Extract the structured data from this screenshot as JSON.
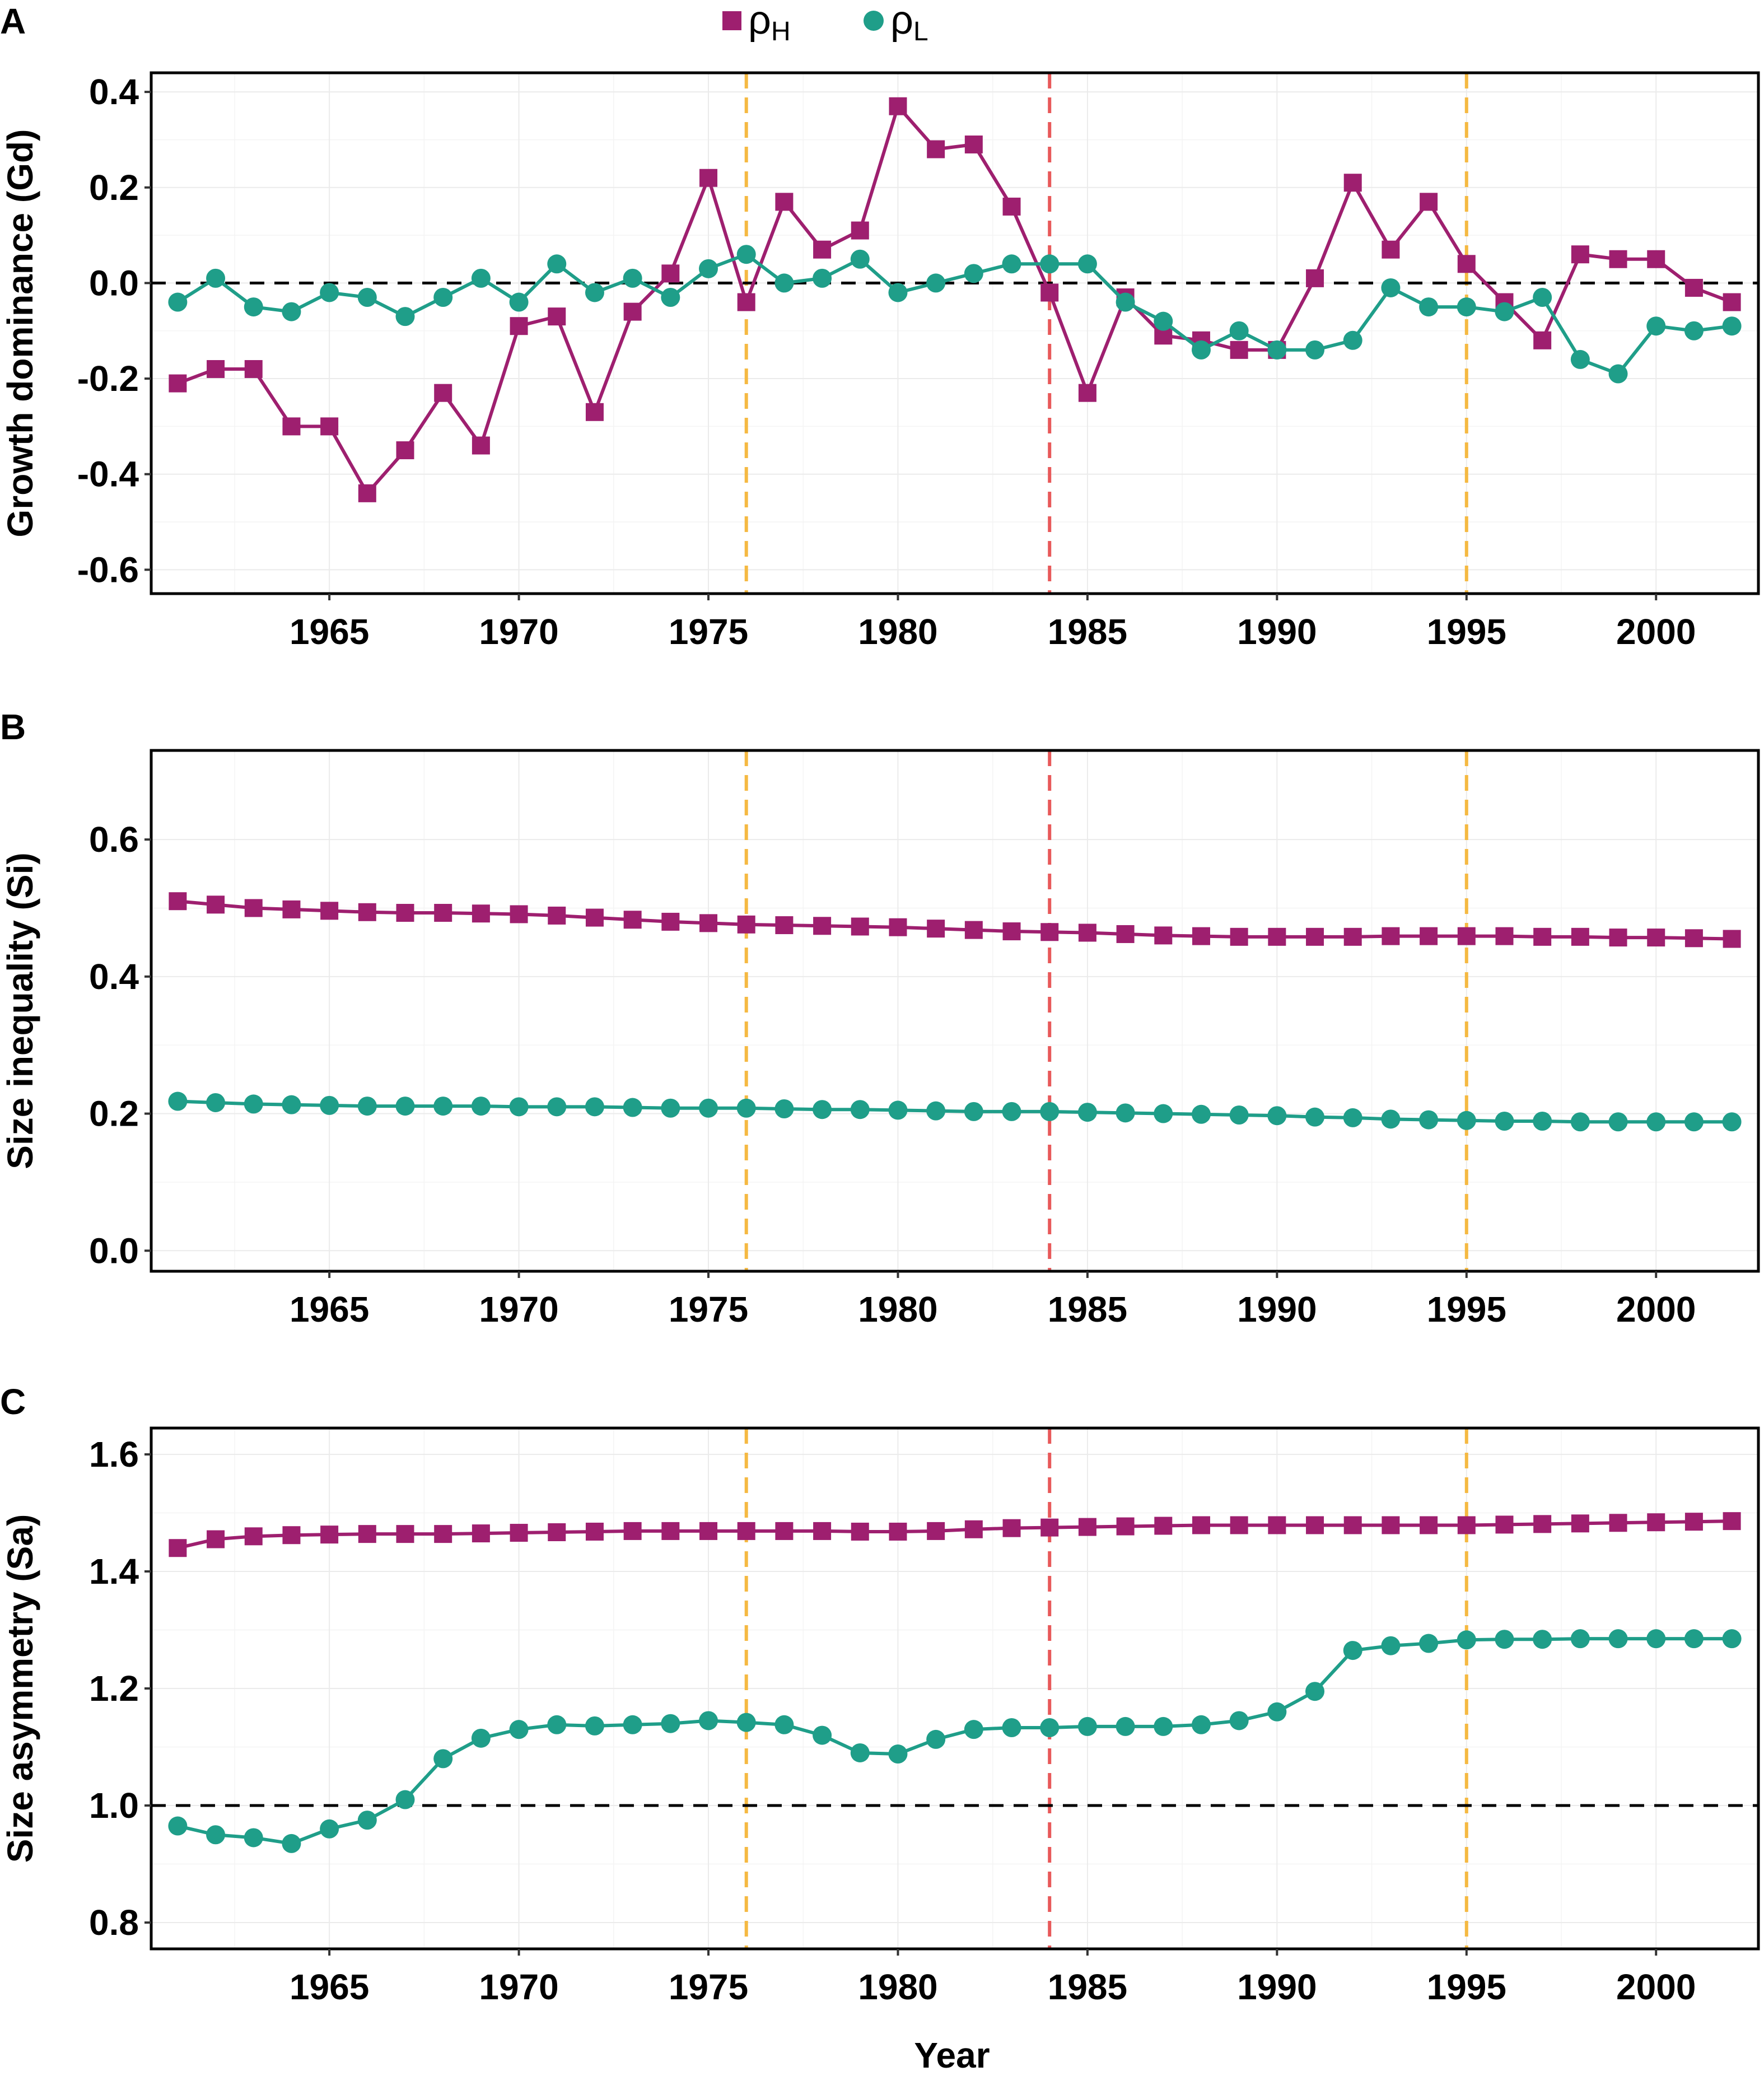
{
  "legend": {
    "series_h": {
      "symbol": "ρ",
      "sub": "H",
      "color": "#9e1f6f",
      "marker": "square"
    },
    "series_l": {
      "symbol": "ρ",
      "sub": "L",
      "color": "#1f9e89",
      "marker": "circle"
    }
  },
  "xlabel": "Year",
  "vlines": [
    {
      "x": 1976,
      "color": "#f5b942"
    },
    {
      "x": 1984,
      "color": "#e8595a"
    },
    {
      "x": 1995,
      "color": "#f5b942"
    }
  ],
  "chart_data": [
    {
      "type": "line",
      "panel": "A",
      "ylabel": "Growth dominance (Gd)",
      "xlim": [
        1960.3,
        2002.7
      ],
      "ylim": [
        -0.65,
        0.44
      ],
      "xticks": [
        1965,
        1970,
        1975,
        1980,
        1985,
        1990,
        1995,
        2000
      ],
      "xtick_labels": [
        "1965",
        "1970",
        "1975",
        "1980",
        "1985",
        "1990",
        "1995",
        "2000"
      ],
      "yticks": [
        -0.6,
        -0.4,
        -0.2,
        0.0,
        0.2,
        0.4
      ],
      "ytick_labels": [
        "-0.6",
        "-0.4",
        "-0.2",
        "0.0",
        "0.2",
        "0.4"
      ],
      "hline": 0.0,
      "x": [
        1961,
        1962,
        1963,
        1964,
        1965,
        1966,
        1967,
        1968,
        1969,
        1970,
        1971,
        1972,
        1973,
        1974,
        1975,
        1976,
        1977,
        1978,
        1979,
        1980,
        1981,
        1982,
        1983,
        1984,
        1985,
        1986,
        1987,
        1988,
        1989,
        1990,
        1991,
        1992,
        1993,
        1994,
        1995,
        1996,
        1997,
        1998,
        1999,
        2000,
        2001,
        2002
      ],
      "series": [
        {
          "name": "ρH",
          "values": [
            -0.21,
            -0.18,
            -0.18,
            -0.3,
            -0.3,
            -0.44,
            -0.35,
            -0.23,
            -0.34,
            -0.09,
            -0.07,
            -0.27,
            -0.06,
            0.02,
            0.22,
            -0.04,
            0.17,
            0.07,
            0.11,
            0.37,
            0.28,
            0.29,
            0.16,
            -0.02,
            -0.23,
            -0.03,
            -0.11,
            -0.12,
            -0.14,
            -0.14,
            0.01,
            0.21,
            0.07,
            0.17,
            0.04,
            -0.04,
            -0.12,
            0.06,
            0.05,
            0.05,
            -0.01,
            -0.04
          ]
        },
        {
          "name": "ρL",
          "values": [
            -0.04,
            0.01,
            -0.05,
            -0.06,
            -0.02,
            -0.03,
            -0.07,
            -0.03,
            0.01,
            -0.04,
            0.04,
            -0.02,
            0.01,
            -0.03,
            0.03,
            0.06,
            0.0,
            0.01,
            0.05,
            -0.02,
            0.0,
            0.02,
            0.04,
            0.04,
            0.04,
            -0.04,
            -0.08,
            -0.14,
            -0.1,
            -0.14,
            -0.14,
            -0.12,
            -0.01,
            -0.05,
            -0.05,
            -0.06,
            -0.03,
            -0.16,
            -0.19,
            -0.09,
            -0.1,
            -0.09
          ]
        }
      ]
    },
    {
      "type": "line",
      "panel": "B",
      "ylabel": "Size inequality (Si)",
      "xlim": [
        1960.3,
        2002.7
      ],
      "ylim": [
        -0.03,
        0.73
      ],
      "xticks": [
        1965,
        1970,
        1975,
        1980,
        1985,
        1990,
        1995,
        2000
      ],
      "xtick_labels": [
        "1965",
        "1970",
        "1975",
        "1980",
        "1985",
        "1990",
        "1995",
        "2000"
      ],
      "yticks": [
        0.0,
        0.2,
        0.4,
        0.6
      ],
      "ytick_labels": [
        "0.0",
        "0.2",
        "0.4",
        "0.6"
      ],
      "x": [
        1961,
        1962,
        1963,
        1964,
        1965,
        1966,
        1967,
        1968,
        1969,
        1970,
        1971,
        1972,
        1973,
        1974,
        1975,
        1976,
        1977,
        1978,
        1979,
        1980,
        1981,
        1982,
        1983,
        1984,
        1985,
        1986,
        1987,
        1988,
        1989,
        1990,
        1991,
        1992,
        1993,
        1994,
        1995,
        1996,
        1997,
        1998,
        1999,
        2000,
        2001,
        2002
      ],
      "series": [
        {
          "name": "ρH",
          "values": [
            0.51,
            0.505,
            0.5,
            0.498,
            0.496,
            0.494,
            0.493,
            0.493,
            0.492,
            0.491,
            0.489,
            0.486,
            0.483,
            0.48,
            0.478,
            0.476,
            0.475,
            0.474,
            0.473,
            0.472,
            0.47,
            0.468,
            0.466,
            0.465,
            0.464,
            0.462,
            0.46,
            0.459,
            0.458,
            0.458,
            0.458,
            0.458,
            0.459,
            0.459,
            0.459,
            0.459,
            0.458,
            0.458,
            0.457,
            0.457,
            0.456,
            0.455
          ]
        },
        {
          "name": "ρL",
          "values": [
            0.218,
            0.216,
            0.214,
            0.213,
            0.212,
            0.211,
            0.211,
            0.211,
            0.211,
            0.21,
            0.21,
            0.21,
            0.209,
            0.208,
            0.208,
            0.208,
            0.207,
            0.206,
            0.206,
            0.205,
            0.204,
            0.203,
            0.203,
            0.203,
            0.202,
            0.201,
            0.2,
            0.199,
            0.198,
            0.197,
            0.195,
            0.194,
            0.192,
            0.191,
            0.19,
            0.189,
            0.189,
            0.188,
            0.188,
            0.188,
            0.188,
            0.188
          ]
        }
      ]
    },
    {
      "type": "line",
      "panel": "C",
      "ylabel": "Size asymmetry (Sa)",
      "xlim": [
        1960.3,
        2002.7
      ],
      "ylim": [
        0.755,
        1.645
      ],
      "xticks": [
        1965,
        1970,
        1975,
        1980,
        1985,
        1990,
        1995,
        2000
      ],
      "xtick_labels": [
        "1965",
        "1970",
        "1975",
        "1980",
        "1985",
        "1990",
        "1995",
        "2000"
      ],
      "yticks": [
        0.8,
        1.0,
        1.2,
        1.4,
        1.6
      ],
      "ytick_labels": [
        "0.8",
        "1.0",
        "1.2",
        "1.4",
        "1.6"
      ],
      "hline": 1.0,
      "x": [
        1961,
        1962,
        1963,
        1964,
        1965,
        1966,
        1967,
        1968,
        1969,
        1970,
        1971,
        1972,
        1973,
        1974,
        1975,
        1976,
        1977,
        1978,
        1979,
        1980,
        1981,
        1982,
        1983,
        1984,
        1985,
        1986,
        1987,
        1988,
        1989,
        1990,
        1991,
        1992,
        1993,
        1994,
        1995,
        1996,
        1997,
        1998,
        1999,
        2000,
        2001,
        2002
      ],
      "series": [
        {
          "name": "ρH",
          "values": [
            1.44,
            1.455,
            1.46,
            1.462,
            1.463,
            1.464,
            1.464,
            1.464,
            1.465,
            1.466,
            1.467,
            1.468,
            1.469,
            1.469,
            1.469,
            1.469,
            1.469,
            1.469,
            1.468,
            1.468,
            1.469,
            1.472,
            1.474,
            1.475,
            1.476,
            1.477,
            1.478,
            1.479,
            1.479,
            1.479,
            1.479,
            1.479,
            1.479,
            1.479,
            1.479,
            1.48,
            1.481,
            1.482,
            1.483,
            1.484,
            1.485,
            1.486
          ]
        },
        {
          "name": "ρL",
          "values": [
            0.965,
            0.95,
            0.945,
            0.935,
            0.96,
            0.975,
            1.01,
            1.08,
            1.115,
            1.13,
            1.138,
            1.136,
            1.138,
            1.14,
            1.145,
            1.142,
            1.138,
            1.12,
            1.09,
            1.088,
            1.113,
            1.13,
            1.133,
            1.133,
            1.135,
            1.135,
            1.135,
            1.138,
            1.145,
            1.16,
            1.195,
            1.265,
            1.273,
            1.277,
            1.283,
            1.284,
            1.284,
            1.285,
            1.285,
            1.285,
            1.285,
            1.285
          ]
        }
      ]
    }
  ]
}
